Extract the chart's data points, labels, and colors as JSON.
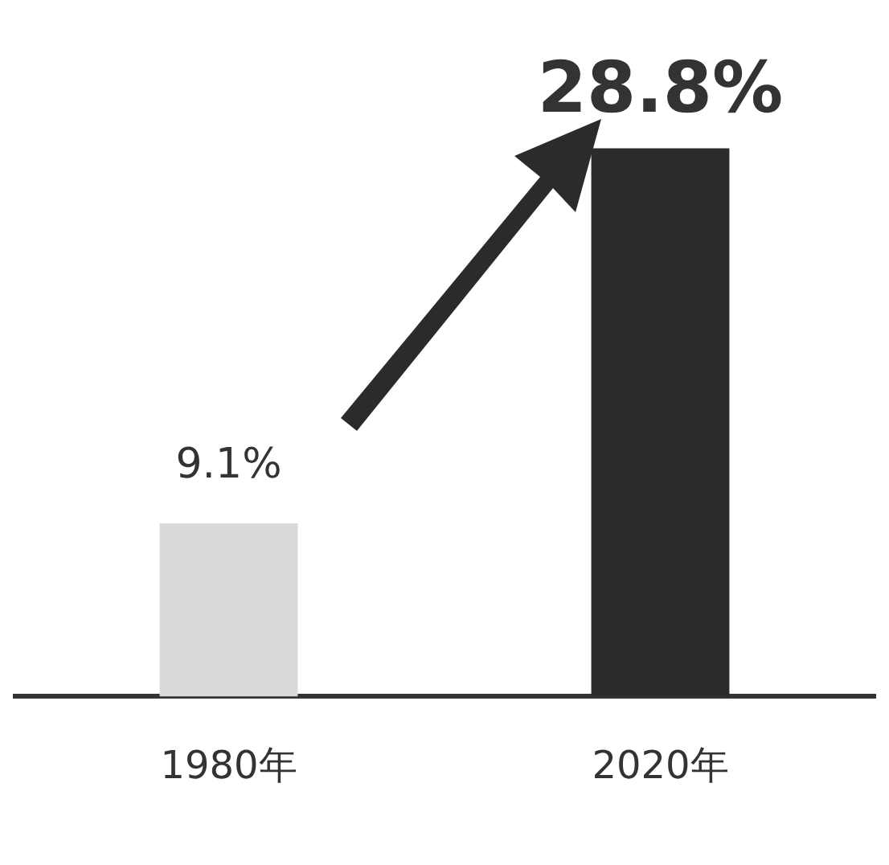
{
  "chart_data": {
    "type": "bar",
    "categories": [
      "1980年",
      "2020年"
    ],
    "values": [
      9.1,
      28.8
    ],
    "colors": [
      "#d9d9d9",
      "#2b2b2b"
    ],
    "value_labels": [
      "9.1%",
      "28.8%"
    ],
    "grid": false,
    "legend": false,
    "tick_labels": "x"
  }
}
